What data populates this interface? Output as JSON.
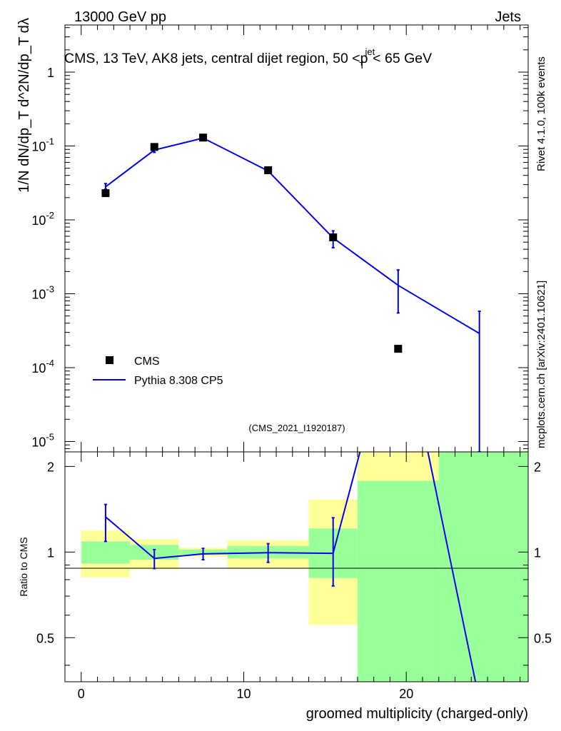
{
  "header": {
    "left": "13000 GeV pp",
    "right": "Jets"
  },
  "side_labels": {
    "rivet": "Rivet 4.1.0,  100k events",
    "mcplots": "mcplots.cern.ch [arXiv:2401.10621]"
  },
  "colors": {
    "band_outer": "#ffff99",
    "band_inner": "#99ff99",
    "mc": "#0000ee",
    "data": "#000000",
    "watermark": "#999999"
  },
  "chart_data": {
    "type": "scatter",
    "title": "CMS, 13 TeV, AK8 jets, central dijet region, 50 <p_T^{jet}< 65 GeV",
    "watermark": "(CMS_2021_I1920187)",
    "xlabel": "groomed multiplicity (charged-only)",
    "ylabel": "1/N dN/dp_T d^2N/dp_T dλ",
    "ratio_ylabel": "Ratio to CMS",
    "xlim": [
      -1,
      27.5
    ],
    "ylim": [
      7e-06,
      4
    ],
    "yscale": "log",
    "ratio_ylim": [
      0.35,
      2.25
    ],
    "ratio_yscale": "log",
    "x_ticks": [
      0,
      10,
      20
    ],
    "ratio_ticks": [
      0.5,
      1,
      2
    ],
    "legend_position": "lower-left",
    "bins": [
      [
        0,
        3
      ],
      [
        3,
        6
      ],
      [
        6,
        9
      ],
      [
        9,
        14
      ],
      [
        14,
        17
      ],
      [
        17,
        22
      ],
      [
        22,
        27.5
      ]
    ],
    "series": [
      {
        "name": "CMS",
        "marker": "square",
        "x": [
          1.5,
          4.5,
          7.5,
          11.5,
          15.5,
          19.5
        ],
        "y": [
          0.023,
          0.097,
          0.13,
          0.047,
          0.0058,
          0.00018
        ]
      },
      {
        "name": "Pythia 8.308 CP5",
        "marker": "line",
        "x": [
          1.5,
          4.5,
          7.5,
          11.5,
          15.5,
          19.5,
          24.5
        ],
        "y": [
          0.028,
          0.088,
          0.128,
          0.046,
          0.0057,
          0.0013,
          0.00029
        ],
        "yerr_low": [
          0.026,
          0.082,
          0.123,
          0.044,
          0.0042,
          0.00055,
          6.6e-06
        ],
        "yerr_high": [
          0.031,
          0.094,
          0.133,
          0.048,
          0.0071,
          0.0021,
          0.00058
        ]
      }
    ],
    "ratio": {
      "x": [
        1.5,
        4.5,
        7.5,
        11.5,
        15.5,
        19.5,
        24.5
      ],
      "y": [
        1.33,
        0.95,
        0.985,
        0.995,
        0.99,
        7.2,
        0.3
      ],
      "err_low": [
        1.09,
        0.875,
        0.94,
        0.92,
        0.76,
        null,
        null
      ],
      "err_high": [
        1.47,
        1.02,
        1.03,
        1.07,
        1.32,
        null,
        null
      ],
      "band_inner": [
        [
          0.91,
          1.09
        ],
        [
          0.94,
          1.06
        ],
        [
          0.98,
          1.02
        ],
        [
          0.95,
          1.05
        ],
        [
          0.81,
          1.21
        ],
        [
          0.35,
          1.78
        ],
        [
          0.35,
          2.25
        ]
      ],
      "band_outer": [
        [
          0.815,
          1.19
        ],
        [
          0.87,
          1.11
        ],
        [
          0.965,
          1.035
        ],
        [
          0.88,
          1.1
        ],
        [
          0.555,
          1.53
        ],
        [
          0.35,
          2.25
        ],
        [
          0.35,
          2.25
        ]
      ]
    }
  }
}
